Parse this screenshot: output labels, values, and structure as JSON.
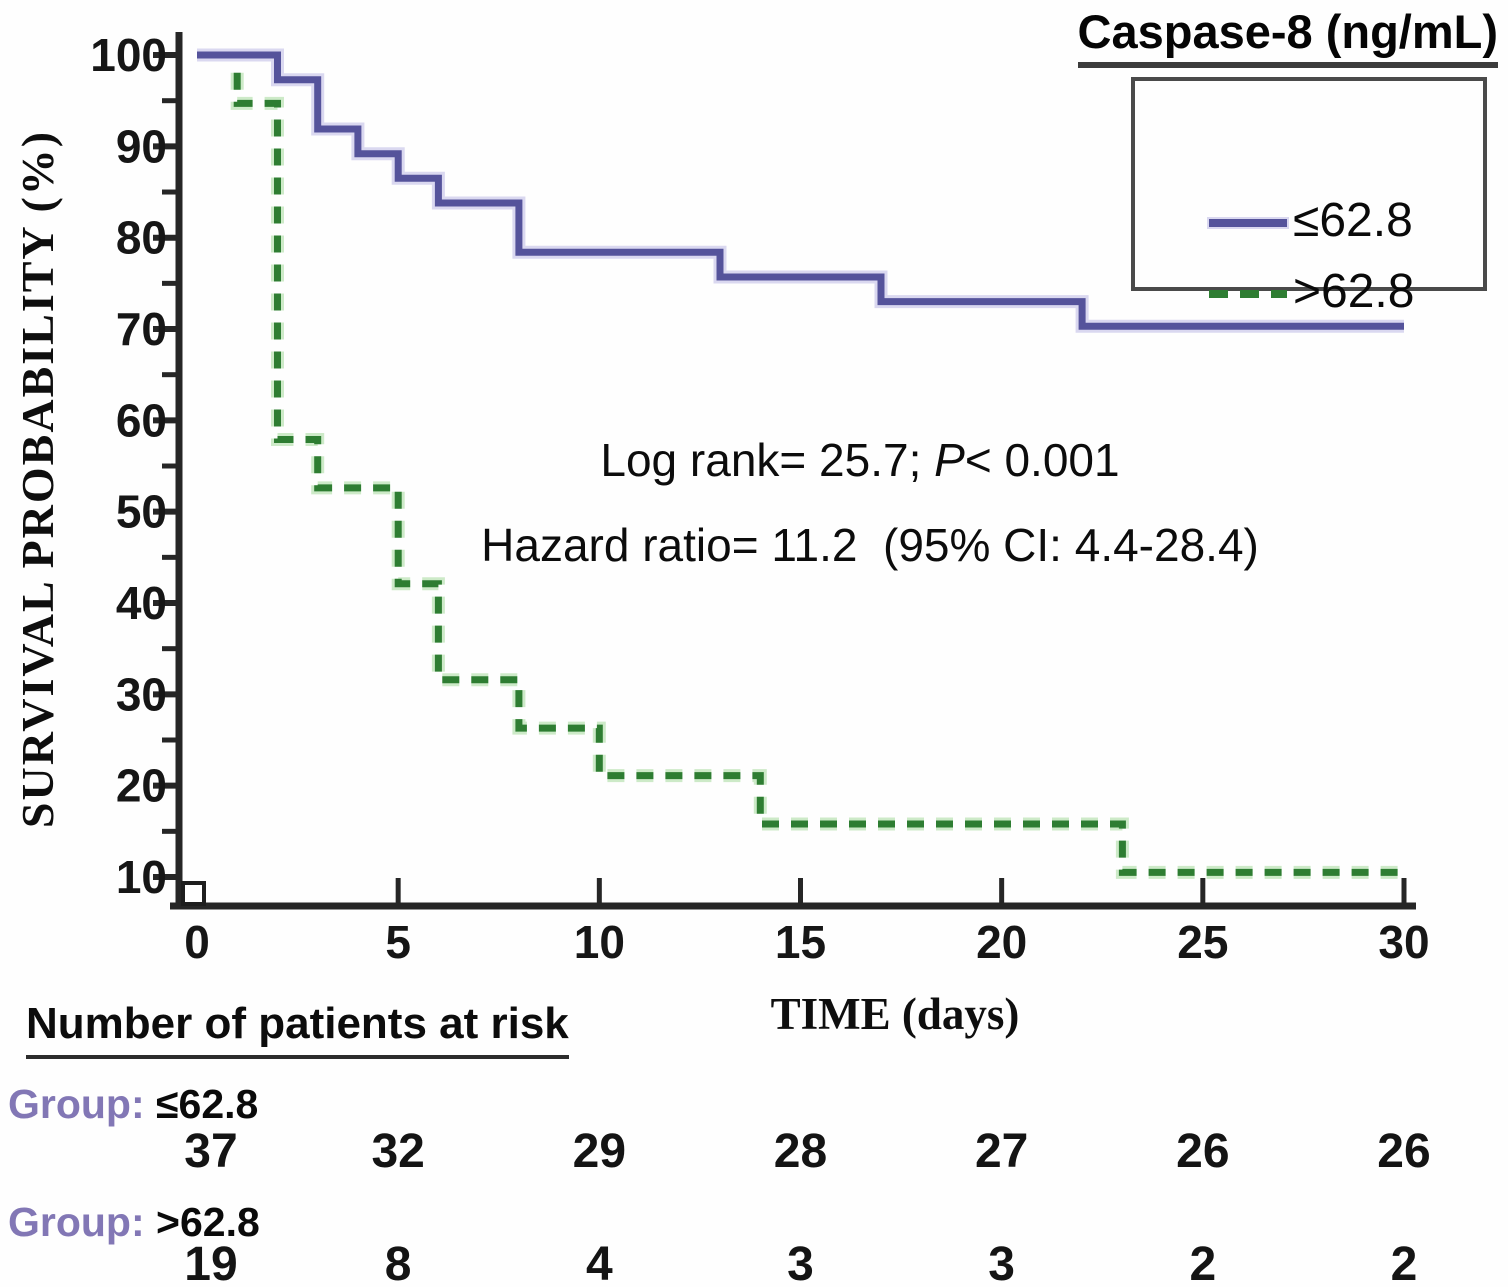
{
  "figure": {
    "title": "Caspase-8 (ng/mL)"
  },
  "chart_data": {
    "type": "line",
    "subtype": "kaplan-meier-step",
    "title": "Caspase-8 (ng/mL)",
    "xlabel": "TIME (days)",
    "ylabel": "SURVIVAL PROBABILITY (%)",
    "xlim": [
      0,
      30
    ],
    "ylim": [
      10,
      100
    ],
    "grid": false,
    "legend_position": "top-right",
    "xticks": [
      0,
      5,
      10,
      15,
      20,
      25,
      30
    ],
    "yticks_major": [
      10,
      20,
      30,
      40,
      50,
      60,
      70,
      80,
      90,
      100
    ],
    "yticks_minor": [
      15,
      25,
      35,
      45,
      55,
      65,
      75,
      85,
      95
    ],
    "series": [
      {
        "name": "≤62.8",
        "style": "solid",
        "color": "#55539b",
        "halo": "#dad8f0",
        "points": [
          [
            0,
            100
          ],
          [
            2,
            100
          ],
          [
            2,
            97.3
          ],
          [
            3,
            97.3
          ],
          [
            3,
            91.9
          ],
          [
            4,
            91.9
          ],
          [
            4,
            89.2
          ],
          [
            5,
            89.2
          ],
          [
            5,
            86.5
          ],
          [
            6,
            86.5
          ],
          [
            6,
            83.8
          ],
          [
            8,
            83.8
          ],
          [
            8,
            78.4
          ],
          [
            13,
            78.4
          ],
          [
            13,
            75.7
          ],
          [
            17,
            75.7
          ],
          [
            17,
            73.0
          ],
          [
            22,
            73.0
          ],
          [
            22,
            70.3
          ],
          [
            30,
            70.3
          ]
        ]
      },
      {
        "name": ">62.8",
        "style": "dashed",
        "color": "#2e7d32",
        "halo": "#cdeac8",
        "points": [
          [
            0,
            100
          ],
          [
            1,
            100
          ],
          [
            1,
            94.7
          ],
          [
            2,
            94.7
          ],
          [
            2,
            57.9
          ],
          [
            3,
            57.9
          ],
          [
            3,
            52.6
          ],
          [
            5,
            52.6
          ],
          [
            5,
            42.1
          ],
          [
            6,
            42.1
          ],
          [
            6,
            31.6
          ],
          [
            8,
            31.6
          ],
          [
            8,
            26.3
          ],
          [
            10,
            26.3
          ],
          [
            10,
            21.1
          ],
          [
            14,
            21.1
          ],
          [
            14,
            15.8
          ],
          [
            23,
            15.8
          ],
          [
            23,
            10.5
          ],
          [
            30,
            10.5
          ]
        ]
      }
    ],
    "annotations": {
      "line1_prefix": "Log rank= 25.7; ",
      "line1_italic": "P",
      "line1_suffix": "< 0.001",
      "line2": "Hazard ratio= 11.2  (95% CI: 4.4-28.4)"
    }
  },
  "risk_table": {
    "title": "Number of patients at risk",
    "time_points": [
      0,
      5,
      10,
      15,
      20,
      25,
      30
    ],
    "groups": [
      {
        "label_prefix": "Group:",
        "label_value": "≤62.8",
        "counts": [
          "37",
          "32",
          "29",
          "28",
          "27",
          "26",
          "26"
        ]
      },
      {
        "label_prefix": "Group:",
        "label_value": ">62.8",
        "counts": [
          "19",
          "8",
          "4",
          "3",
          "3",
          "2",
          "2"
        ]
      }
    ]
  },
  "colors": {
    "blue_series": "#55539b",
    "green_series": "#2e7d32",
    "group_label": "#8277b5",
    "axis": "#262626"
  }
}
